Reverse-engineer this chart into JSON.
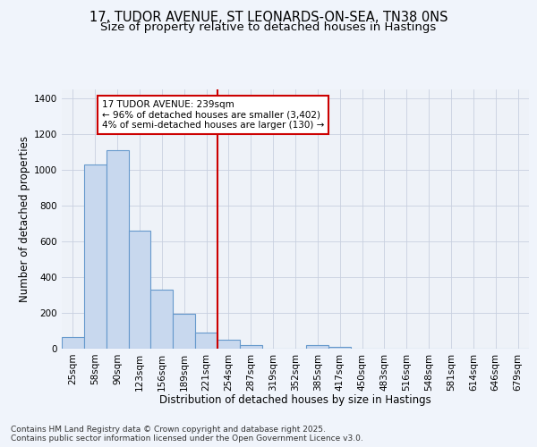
{
  "title_line1": "17, TUDOR AVENUE, ST LEONARDS-ON-SEA, TN38 0NS",
  "title_line2": "Size of property relative to detached houses in Hastings",
  "xlabel": "Distribution of detached houses by size in Hastings",
  "ylabel": "Number of detached properties",
  "categories": [
    "25sqm",
    "58sqm",
    "90sqm",
    "123sqm",
    "156sqm",
    "189sqm",
    "221sqm",
    "254sqm",
    "287sqm",
    "319sqm",
    "352sqm",
    "385sqm",
    "417sqm",
    "450sqm",
    "483sqm",
    "516sqm",
    "548sqm",
    "581sqm",
    "614sqm",
    "646sqm",
    "679sqm"
  ],
  "values": [
    65,
    1030,
    1110,
    660,
    330,
    195,
    90,
    50,
    20,
    0,
    0,
    20,
    10,
    0,
    0,
    0,
    0,
    0,
    0,
    0,
    0
  ],
  "bar_color": "#c8d8ee",
  "bar_edge_color": "#6699cc",
  "vline_color": "#cc0000",
  "vline_pos": 7.5,
  "annotation_text": "17 TUDOR AVENUE: 239sqm\n← 96% of detached houses are smaller (3,402)\n4% of semi-detached houses are larger (130) →",
  "annotation_box_color": "#cc0000",
  "annotation_fill": "#ffffff",
  "ylim": [
    0,
    1450
  ],
  "yticks": [
    0,
    200,
    400,
    600,
    800,
    1000,
    1200,
    1400
  ],
  "background_color": "#f0f4fb",
  "plot_bg_color": "#eef2f8",
  "footer_line1": "Contains HM Land Registry data © Crown copyright and database right 2025.",
  "footer_line2": "Contains public sector information licensed under the Open Government Licence v3.0.",
  "title_fontsize": 10.5,
  "subtitle_fontsize": 9.5,
  "axis_label_fontsize": 8.5,
  "tick_fontsize": 7.5,
  "annotation_fontsize": 7.5,
  "footer_fontsize": 6.5
}
